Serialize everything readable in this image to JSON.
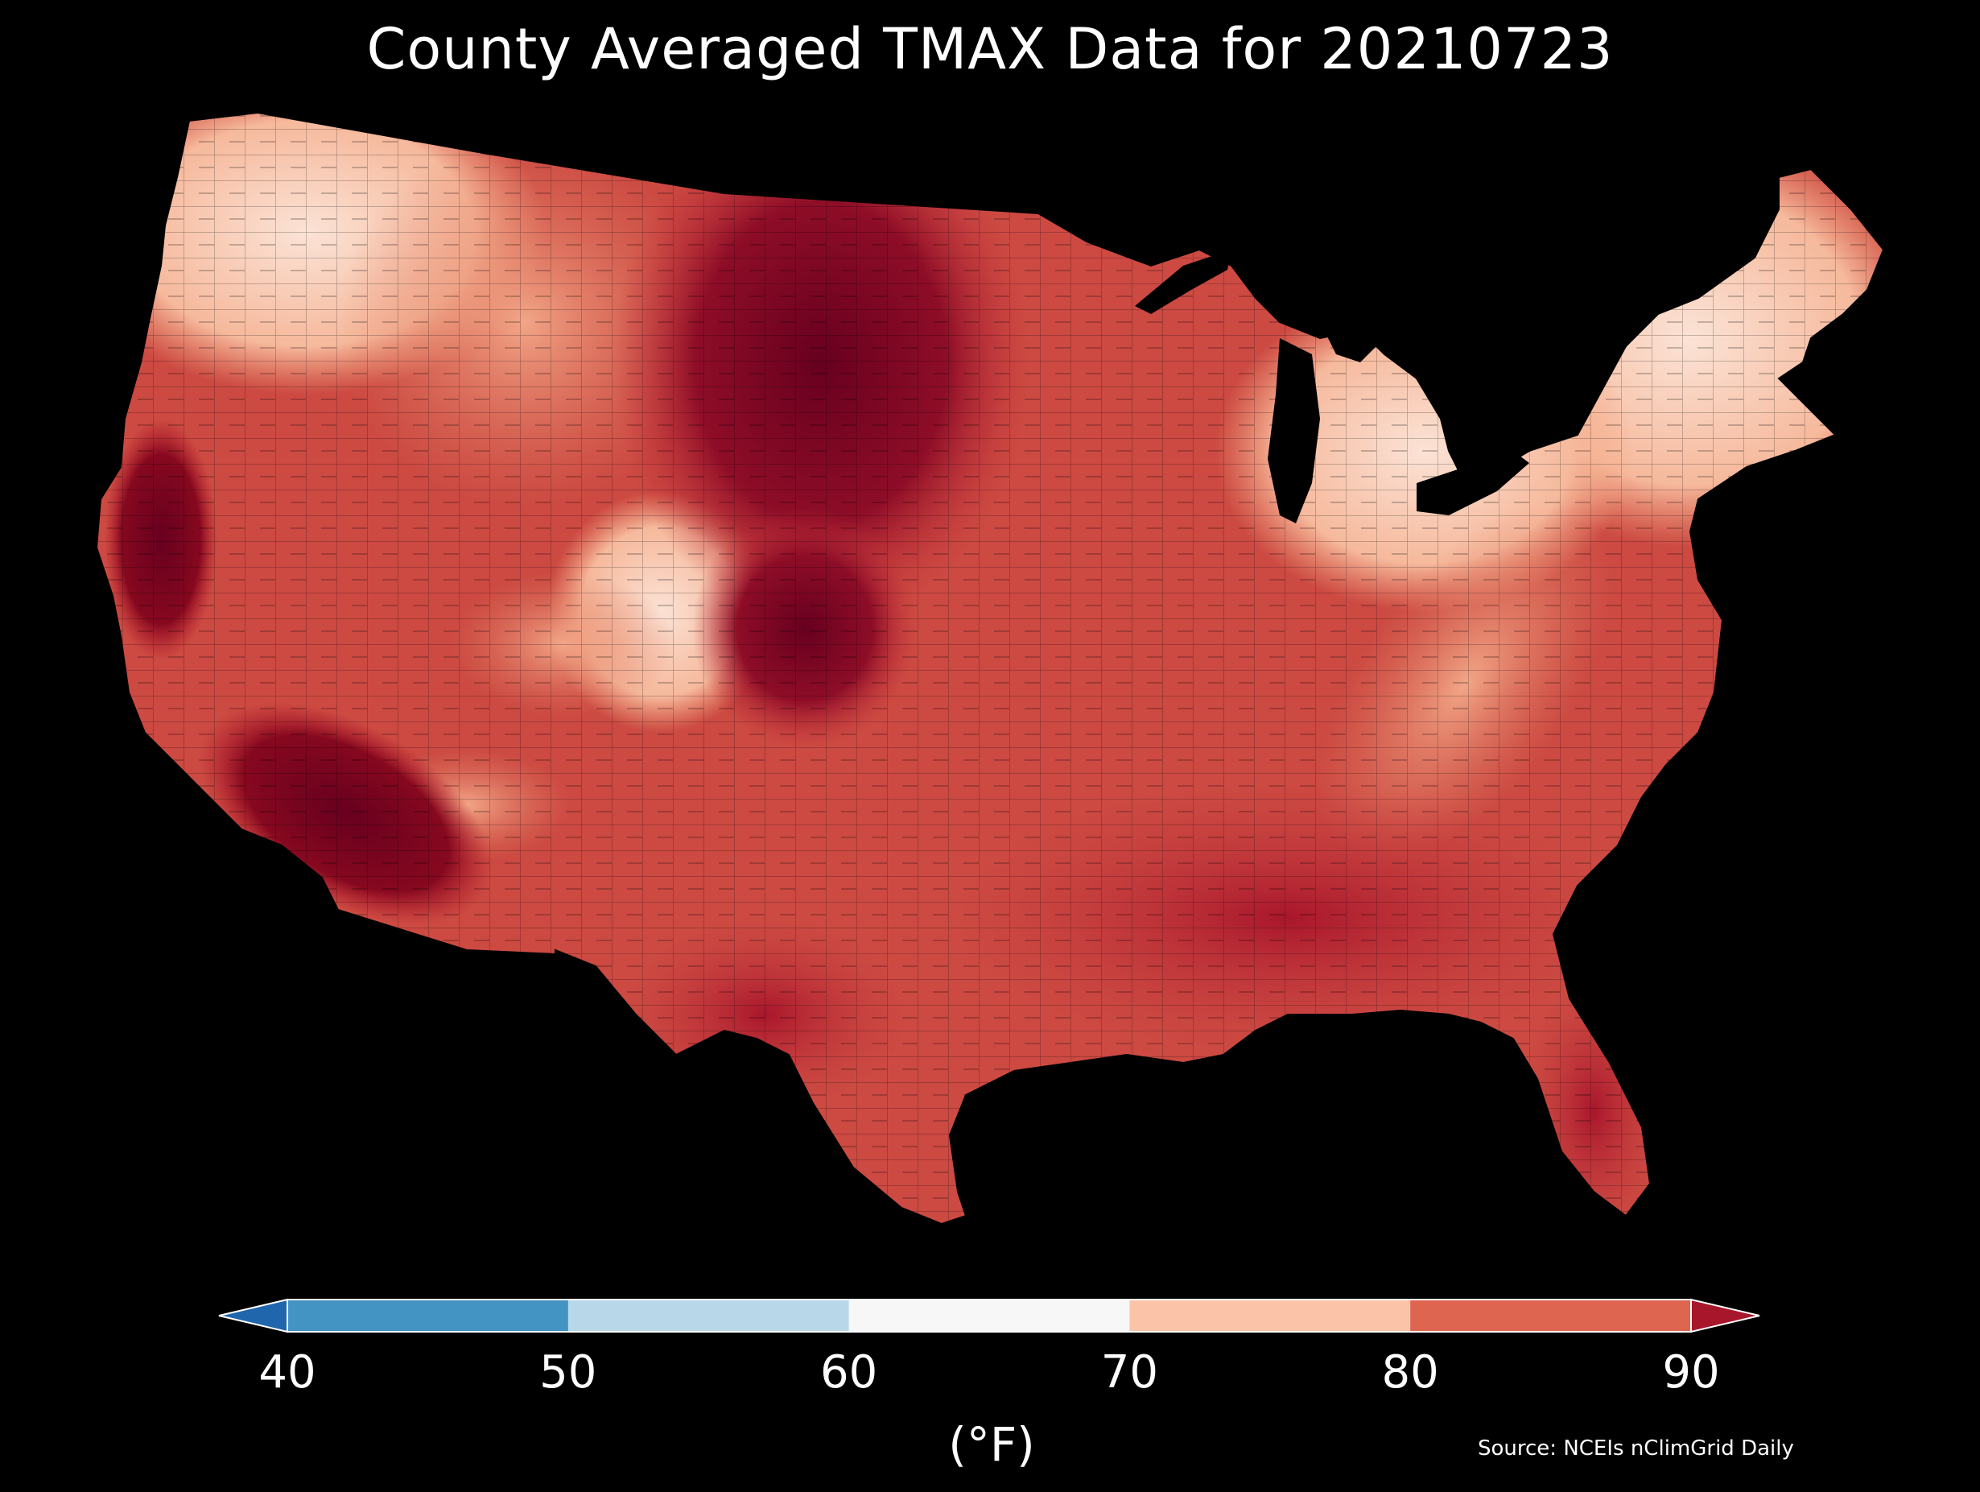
{
  "title": "County Averaged TMAX Data for 20210723",
  "colorbar": {
    "unit_label": "(°F)",
    "ticks": [
      "40",
      "50",
      "60",
      "70",
      "80",
      "90"
    ],
    "bins": [
      {
        "range": "<40",
        "color": "#2066ac"
      },
      {
        "range": "40-50",
        "color": "#4393c3"
      },
      {
        "range": "50-60",
        "color": "#b8d8ea"
      },
      {
        "range": "60-70",
        "color": "#f7f7f7"
      },
      {
        "range": "70-80",
        "color": "#fbc4a8"
      },
      {
        "range": "80-90",
        "color": "#de6550"
      },
      {
        "range": ">90",
        "color": "#a8162b"
      }
    ]
  },
  "source": "Source: NCEIs nClimGrid Daily",
  "colors": {
    "background": "#000000",
    "hottest": "#67001f",
    "very_hot": "#a8162b",
    "hot": "#d6604d",
    "warm": "#f4a582",
    "mild": "#fddbc7",
    "cool": "#f7f7f7"
  }
}
